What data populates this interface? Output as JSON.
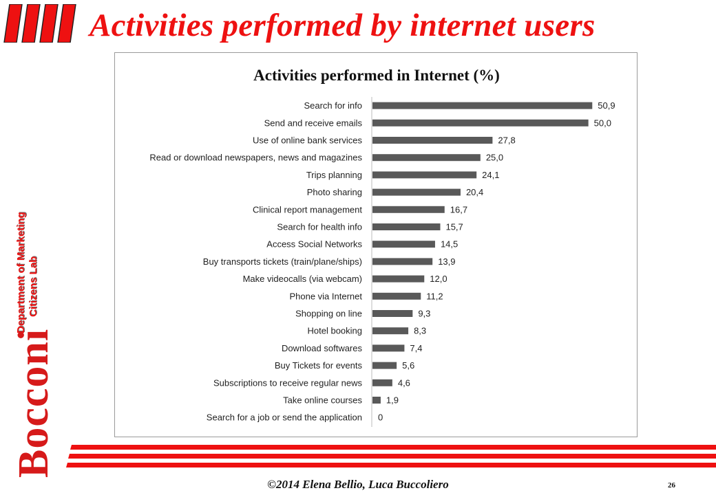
{
  "slide": {
    "title": "Activities performed by internet users",
    "dept_line1": "Department of Marketing",
    "dept_line2": "Citizens Lab",
    "logo_text": "Bocconi",
    "footer": "©2014  Elena Bellio, Luca Buccoliero",
    "page_number": "26",
    "accent_color": "#ee1111"
  },
  "chart_data": {
    "type": "bar",
    "orientation": "horizontal",
    "title": "Activities performed in Internet (%)",
    "categories": [
      "Search for info",
      "Send and receive emails",
      "Use of online bank services",
      "Read or download newspapers, news and magazines",
      "Trips planning",
      "Photo sharing",
      "Clinical report management",
      "Search for health info",
      "Access Social Networks",
      "Buy transports tickets (train/plane/ships)",
      "Make videocalls (via webcam)",
      "Phone via Internet",
      "Shopping on line",
      "Hotel booking",
      "Download softwares",
      "Buy Tickets for events",
      "Subscriptions to receive regular news",
      "Take online courses",
      "Search for a job or send the application"
    ],
    "values": [
      50.9,
      50.0,
      27.8,
      25.0,
      24.1,
      20.4,
      16.7,
      15.7,
      14.5,
      13.9,
      12.0,
      11.2,
      9.3,
      8.3,
      7.4,
      5.6,
      4.6,
      1.9,
      0
    ],
    "data_labels": [
      "50,9",
      "50,0",
      "27,8",
      "25,0",
      "24,1",
      "20,4",
      "16,7",
      "15,7",
      "14,5",
      "13,9",
      "12,0",
      "11,2",
      "9,3",
      "8,3",
      "7,4",
      "5,6",
      "4,6",
      "1,9",
      "0"
    ],
    "bar_color": "#595959",
    "xlim": [
      0,
      55
    ],
    "grid": false,
    "legend": "none"
  }
}
